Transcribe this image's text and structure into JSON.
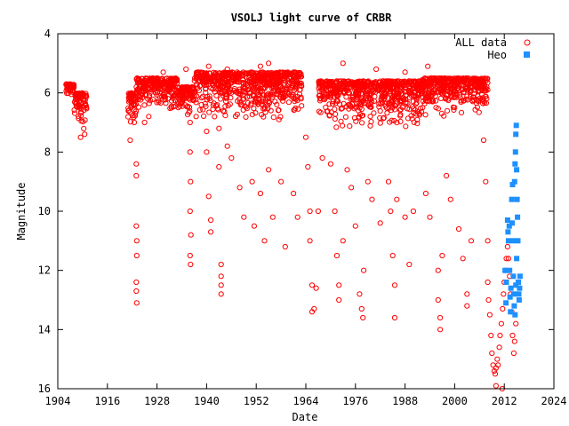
{
  "chart_data": {
    "type": "scatter",
    "title": "VSOLJ light curve of CRBR",
    "xlabel": "Date",
    "ylabel": "Magnitude",
    "xlim": [
      1904,
      2024
    ],
    "ylim": [
      4,
      16
    ],
    "y_inverted": true,
    "x_ticks": [
      1904,
      1916,
      1928,
      1940,
      1952,
      1964,
      1976,
      1988,
      2000,
      2012,
      2024
    ],
    "y_ticks": [
      4,
      6,
      8,
      10,
      12,
      14,
      16
    ],
    "grid": false,
    "legend_position": "top-right",
    "series": [
      {
        "name": "ALL data",
        "marker": "open-circle",
        "color": "#ff0000",
        "segments": [
          {
            "x": [
              1906.0,
              1908.0
            ],
            "y": [
              5.7,
              6.1
            ]
          },
          {
            "x": [
              1908.0,
              1911.0
            ],
            "y": [
              6.0,
              7.3
            ]
          },
          {
            "x": [
              1921.0,
              1923.0
            ],
            "y": [
              6.0,
              7.2
            ]
          },
          {
            "x": [
              1923.0,
              1933.0
            ],
            "y": [
              5.5,
              6.6
            ]
          },
          {
            "x": [
              1933.0,
              1937.0
            ],
            "y": [
              5.8,
              6.8
            ]
          },
          {
            "x": [
              1937.0,
              1963.0
            ],
            "y": [
              5.3,
              7.0
            ]
          },
          {
            "x": [
              1967.0,
              1992.0
            ],
            "y": [
              5.6,
              7.2
            ]
          },
          {
            "x": [
              1992.0,
              2008.0
            ],
            "y": [
              5.5,
              6.8
            ]
          }
        ],
        "points": [
          [
            1909.5,
            7.5
          ],
          [
            1910.5,
            7.4
          ],
          [
            1921.5,
            7.6
          ],
          [
            1922.5,
            7.0
          ],
          [
            1923.0,
            8.4
          ],
          [
            1923.0,
            8.8
          ],
          [
            1923.0,
            10.5
          ],
          [
            1923.1,
            11.0
          ],
          [
            1923.1,
            11.5
          ],
          [
            1923.0,
            12.4
          ],
          [
            1923.0,
            12.7
          ],
          [
            1923.1,
            13.1
          ],
          [
            1925.0,
            7.0
          ],
          [
            1926.0,
            6.8
          ],
          [
            1927.0,
            5.5
          ],
          [
            1929.5,
            5.3
          ],
          [
            1935.0,
            5.2
          ],
          [
            1938.0,
            5.3
          ],
          [
            1940.5,
            5.1
          ],
          [
            1945.0,
            5.2
          ],
          [
            1953.0,
            5.1
          ],
          [
            1955.0,
            5.0
          ],
          [
            1973.0,
            5.0
          ],
          [
            1981.0,
            5.2
          ],
          [
            1988.0,
            5.3
          ],
          [
            1993.5,
            5.1
          ],
          [
            1936.0,
            7.0
          ],
          [
            1936.0,
            8.0
          ],
          [
            1936.1,
            9.0
          ],
          [
            1936.0,
            10.0
          ],
          [
            1936.2,
            10.8
          ],
          [
            1936.0,
            11.5
          ],
          [
            1936.1,
            11.8
          ],
          [
            1940.0,
            7.3
          ],
          [
            1940.0,
            8.0
          ],
          [
            1940.5,
            9.5
          ],
          [
            1941.0,
            10.3
          ],
          [
            1941.0,
            10.7
          ],
          [
            1943.0,
            7.2
          ],
          [
            1943.0,
            8.5
          ],
          [
            1943.5,
            11.8
          ],
          [
            1943.5,
            12.2
          ],
          [
            1943.5,
            12.5
          ],
          [
            1943.5,
            12.8
          ],
          [
            1945.0,
            7.8
          ],
          [
            1946.0,
            8.2
          ],
          [
            1948.0,
            9.2
          ],
          [
            1949.0,
            10.2
          ],
          [
            1951.0,
            9.0
          ],
          [
            1951.5,
            10.5
          ],
          [
            1953.0,
            9.4
          ],
          [
            1954.0,
            11.0
          ],
          [
            1955.0,
            8.6
          ],
          [
            1956.0,
            10.2
          ],
          [
            1958.0,
            9.0
          ],
          [
            1959.0,
            11.2
          ],
          [
            1961.0,
            9.4
          ],
          [
            1962.0,
            10.2
          ],
          [
            1964.0,
            7.5
          ],
          [
            1964.5,
            8.5
          ],
          [
            1965.0,
            10.0
          ],
          [
            1965.0,
            11.0
          ],
          [
            1965.5,
            12.5
          ],
          [
            1965.5,
            13.4
          ],
          [
            1966.0,
            13.3
          ],
          [
            1966.5,
            12.6
          ],
          [
            1967.0,
            10.0
          ],
          [
            1968.0,
            8.2
          ],
          [
            1970.0,
            8.4
          ],
          [
            1971.0,
            10.0
          ],
          [
            1971.5,
            11.5
          ],
          [
            1972.0,
            12.5
          ],
          [
            1972.0,
            13.0
          ],
          [
            1973.0,
            11.0
          ],
          [
            1974.0,
            8.6
          ],
          [
            1975.0,
            9.2
          ],
          [
            1976.0,
            10.5
          ],
          [
            1977.0,
            12.8
          ],
          [
            1977.5,
            13.3
          ],
          [
            1977.8,
            13.6
          ],
          [
            1978.0,
            12.0
          ],
          [
            1979.0,
            9.0
          ],
          [
            1980.0,
            9.6
          ],
          [
            1982.0,
            10.4
          ],
          [
            1984.0,
            9.0
          ],
          [
            1984.5,
            10.0
          ],
          [
            1985.0,
            11.5
          ],
          [
            1985.5,
            12.5
          ],
          [
            1985.5,
            13.6
          ],
          [
            1986.0,
            9.6
          ],
          [
            1988.0,
            10.2
          ],
          [
            1989.0,
            11.8
          ],
          [
            1990.0,
            10.0
          ],
          [
            1993.0,
            9.4
          ],
          [
            1994.0,
            10.2
          ],
          [
            1996.0,
            12.0
          ],
          [
            1996.0,
            13.0
          ],
          [
            1996.5,
            13.6
          ],
          [
            1996.5,
            14.0
          ],
          [
            1997.0,
            11.5
          ],
          [
            1998.0,
            8.8
          ],
          [
            1999.0,
            9.6
          ],
          [
            2001.0,
            10.6
          ],
          [
            2002.0,
            11.6
          ],
          [
            2003.0,
            12.8
          ],
          [
            2003.0,
            13.2
          ],
          [
            2004.0,
            11.0
          ],
          [
            2007.0,
            7.6
          ],
          [
            2007.5,
            9.0
          ],
          [
            2008.0,
            11.0
          ],
          [
            2008.0,
            12.4
          ],
          [
            2008.2,
            13.0
          ],
          [
            2008.5,
            13.5
          ],
          [
            2008.8,
            14.2
          ],
          [
            2009.0,
            14.8
          ],
          [
            2009.3,
            15.2
          ],
          [
            2009.6,
            15.4
          ],
          [
            2009.8,
            15.5
          ],
          [
            2010.0,
            15.3
          ],
          [
            2010.3,
            15.0
          ],
          [
            2010.5,
            15.2
          ],
          [
            2010.8,
            14.6
          ],
          [
            2011.0,
            14.2
          ],
          [
            2011.3,
            13.8
          ],
          [
            2011.6,
            13.3
          ],
          [
            2011.8,
            12.8
          ],
          [
            2012.0,
            12.4
          ],
          [
            2012.3,
            12.0
          ],
          [
            2012.5,
            11.6
          ],
          [
            2012.8,
            11.2
          ],
          [
            2013.0,
            11.6
          ],
          [
            2013.3,
            12.2
          ],
          [
            2013.5,
            12.8
          ],
          [
            2013.8,
            13.4
          ],
          [
            2014.0,
            14.2
          ],
          [
            2014.3,
            14.8
          ],
          [
            2014.5,
            14.4
          ],
          [
            2014.8,
            13.8
          ],
          [
            2010.0,
            15.9
          ],
          [
            2011.5,
            16.0
          ]
        ]
      },
      {
        "name": "Heo",
        "marker": "filled-square",
        "color": "#1e90ff",
        "points": [
          [
            2012.2,
            12.0
          ],
          [
            2012.4,
            13.1
          ],
          [
            2012.5,
            12.4
          ],
          [
            2012.8,
            10.3
          ],
          [
            2012.9,
            10.7
          ],
          [
            2013.0,
            11.0
          ],
          [
            2013.2,
            10.5
          ],
          [
            2013.3,
            12.0
          ],
          [
            2013.4,
            12.9
          ],
          [
            2013.5,
            13.4
          ],
          [
            2013.6,
            12.6
          ],
          [
            2013.8,
            9.6
          ],
          [
            2013.9,
            10.4
          ],
          [
            2014.0,
            9.1
          ],
          [
            2014.1,
            11.0
          ],
          [
            2014.2,
            12.2
          ],
          [
            2014.3,
            12.8
          ],
          [
            2014.4,
            13.2
          ],
          [
            2014.5,
            9.0
          ],
          [
            2014.6,
            8.4
          ],
          [
            2014.7,
            8.0
          ],
          [
            2014.8,
            7.4
          ],
          [
            2014.9,
            7.1
          ],
          [
            2015.0,
            8.6
          ],
          [
            2015.1,
            9.6
          ],
          [
            2015.2,
            10.2
          ],
          [
            2015.3,
            11.0
          ],
          [
            2015.4,
            12.4
          ],
          [
            2015.5,
            12.8
          ],
          [
            2015.6,
            13.0
          ],
          [
            2015.7,
            12.6
          ],
          [
            2015.8,
            12.2
          ],
          [
            2014.6,
            13.5
          ],
          [
            2014.8,
            12.5
          ],
          [
            2015.0,
            11.6
          ]
        ]
      }
    ]
  }
}
